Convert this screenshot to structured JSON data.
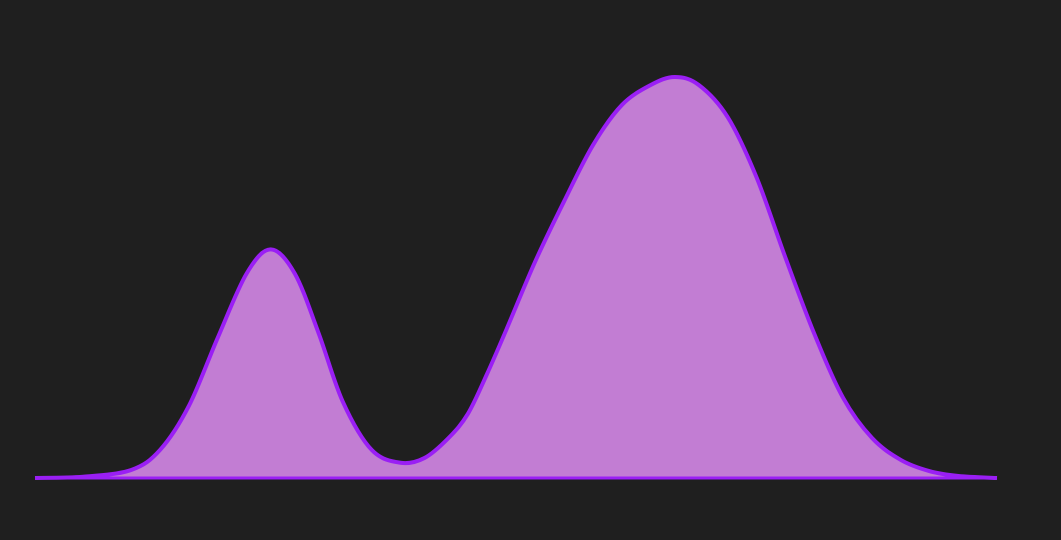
{
  "chart_data": {
    "type": "area",
    "title": "",
    "xlabel": "",
    "ylabel": "",
    "grid": false,
    "legend": "none",
    "xlim": [
      0,
      100
    ],
    "ylim": [
      0,
      1
    ],
    "series": [
      {
        "x": [
          0,
          5,
          10,
          13,
          16,
          19,
          22,
          24.5,
          27,
          29.5,
          32,
          35,
          38,
          40.5,
          43,
          45,
          47,
          49,
          52,
          55,
          58,
          61,
          64,
          66.5,
          69,
          72,
          75,
          78,
          81,
          84,
          87,
          90,
          93,
          96,
          100
        ],
        "values": [
          0,
          0.003,
          0.02,
          0.07,
          0.18,
          0.35,
          0.51,
          0.57,
          0.51,
          0.36,
          0.19,
          0.07,
          0.038,
          0.05,
          0.1,
          0.16,
          0.26,
          0.37,
          0.54,
          0.69,
          0.83,
          0.93,
          0.98,
          1.0,
          0.98,
          0.9,
          0.75,
          0.55,
          0.36,
          0.2,
          0.1,
          0.045,
          0.017,
          0.005,
          0.0
        ]
      }
    ],
    "colors": {
      "fill": "#c27dd3",
      "stroke": "#9a1ff4",
      "background": "#1f1f1f"
    }
  }
}
